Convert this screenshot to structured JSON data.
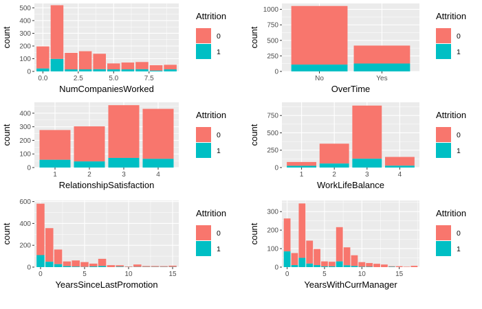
{
  "colors": {
    "attrition_0": "#F8766D",
    "attrition_1": "#00BFC4",
    "panel_bg": "#EBEBEB",
    "grid": "#FFFFFF"
  },
  "chart_data": [
    {
      "type": "bar",
      "stacked": true,
      "xlabel": "NumCompaniesWorked",
      "ylabel": "count",
      "x": [
        0,
        1,
        2,
        3,
        4,
        5,
        6,
        7,
        8,
        9
      ],
      "xticks": [
        "0.0",
        "2.5",
        "5.0",
        "7.5"
      ],
      "xtick_values": [
        0,
        2.5,
        5,
        7.5
      ],
      "xlim": [
        -0.6,
        9.6
      ],
      "yticks": [
        0,
        100,
        200,
        300,
        400,
        500
      ],
      "ylim": [
        0,
        535
      ],
      "legend_title": "Attrition",
      "series": [
        {
          "name": "0",
          "values": [
            174,
            423,
            130,
            143,
            122,
            47,
            54,
            57,
            43,
            36
          ]
        },
        {
          "name": "1",
          "values": [
            23,
            98,
            16,
            16,
            17,
            16,
            16,
            17,
            6,
            16
          ]
        }
      ]
    },
    {
      "type": "bar",
      "stacked": true,
      "xlabel": "OverTime",
      "ylabel": "count",
      "categories": [
        "No",
        "Yes"
      ],
      "yticks": [
        0,
        250,
        500,
        750,
        1000
      ],
      "ylim": [
        0,
        1095
      ],
      "legend_title": "Attrition",
      "series": [
        {
          "name": "0",
          "values": [
            944,
            289
          ]
        },
        {
          "name": "1",
          "values": [
            110,
            127
          ]
        }
      ]
    },
    {
      "type": "bar",
      "stacked": true,
      "xlabel": "RelationshipSatisfaction",
      "ylabel": "count",
      "categories": [
        "1",
        "2",
        "3",
        "4"
      ],
      "yticks": [
        0,
        100,
        200,
        300,
        400
      ],
      "ylim": [
        0,
        480
      ],
      "legend_title": "Attrition",
      "series": [
        {
          "name": "0",
          "values": [
            219,
            258,
            388,
            368
          ]
        },
        {
          "name": "1",
          "values": [
            57,
            45,
            71,
            64
          ]
        }
      ]
    },
    {
      "type": "bar",
      "stacked": true,
      "xlabel": "WorkLifeBalance",
      "ylabel": "count",
      "categories": [
        "1",
        "2",
        "3",
        "4"
      ],
      "yticks": [
        0,
        250,
        500,
        750
      ],
      "ylim": [
        0,
        940
      ],
      "legend_title": "Attrition",
      "series": [
        {
          "name": "0",
          "values": [
            55,
            286,
            766,
            126
          ]
        },
        {
          "name": "1",
          "values": [
            25,
            58,
            127,
            27
          ]
        }
      ]
    },
    {
      "type": "bar",
      "stacked": true,
      "xlabel": "YearsSinceLastPromotion",
      "ylabel": "count",
      "x": [
        0,
        1,
        2,
        3,
        4,
        5,
        6,
        7,
        8,
        9,
        10,
        11,
        12,
        13,
        14,
        15
      ],
      "xticks": [
        "0",
        "5",
        "10",
        "15"
      ],
      "xtick_values": [
        0,
        5,
        10,
        15
      ],
      "xlim": [
        -0.7,
        15.7
      ],
      "yticks": [
        0,
        200,
        400,
        600
      ],
      "ylim": [
        0,
        610
      ],
      "legend_title": "Attrition",
      "series": [
        {
          "name": "0",
          "values": [
            471,
            308,
            134,
            43,
            56,
            44,
            26,
            66,
            18,
            13,
            5,
            22,
            8,
            8,
            7,
            11
          ]
        },
        {
          "name": "1",
          "values": [
            110,
            49,
            27,
            9,
            5,
            2,
            6,
            10,
            0,
            4,
            1,
            2,
            2,
            2,
            2,
            2
          ]
        }
      ]
    },
    {
      "type": "bar",
      "stacked": true,
      "xlabel": "YearsWithCurrManager",
      "ylabel": "count",
      "x": [
        0,
        1,
        2,
        3,
        4,
        5,
        6,
        7,
        8,
        9,
        10,
        11,
        12,
        13,
        14,
        15,
        16,
        17
      ],
      "xticks": [
        "0",
        "5",
        "10",
        "15"
      ],
      "xtick_values": [
        0,
        5,
        10,
        15
      ],
      "xlim": [
        -0.7,
        17.7
      ],
      "yticks": [
        0,
        100,
        200,
        300
      ],
      "ylim": [
        0,
        360
      ],
      "legend_title": "Attrition",
      "series": [
        {
          "name": "0",
          "values": [
            178,
            65,
            294,
            124,
            87,
            27,
            25,
            185,
            97,
            58,
            25,
            20,
            18,
            14,
            3,
            5,
            2,
            7
          ]
        },
        {
          "name": "1",
          "values": [
            85,
            11,
            50,
            19,
            11,
            4,
            4,
            31,
            10,
            6,
            2,
            2,
            0,
            0,
            2,
            0,
            0,
            0
          ]
        }
      ]
    }
  ]
}
